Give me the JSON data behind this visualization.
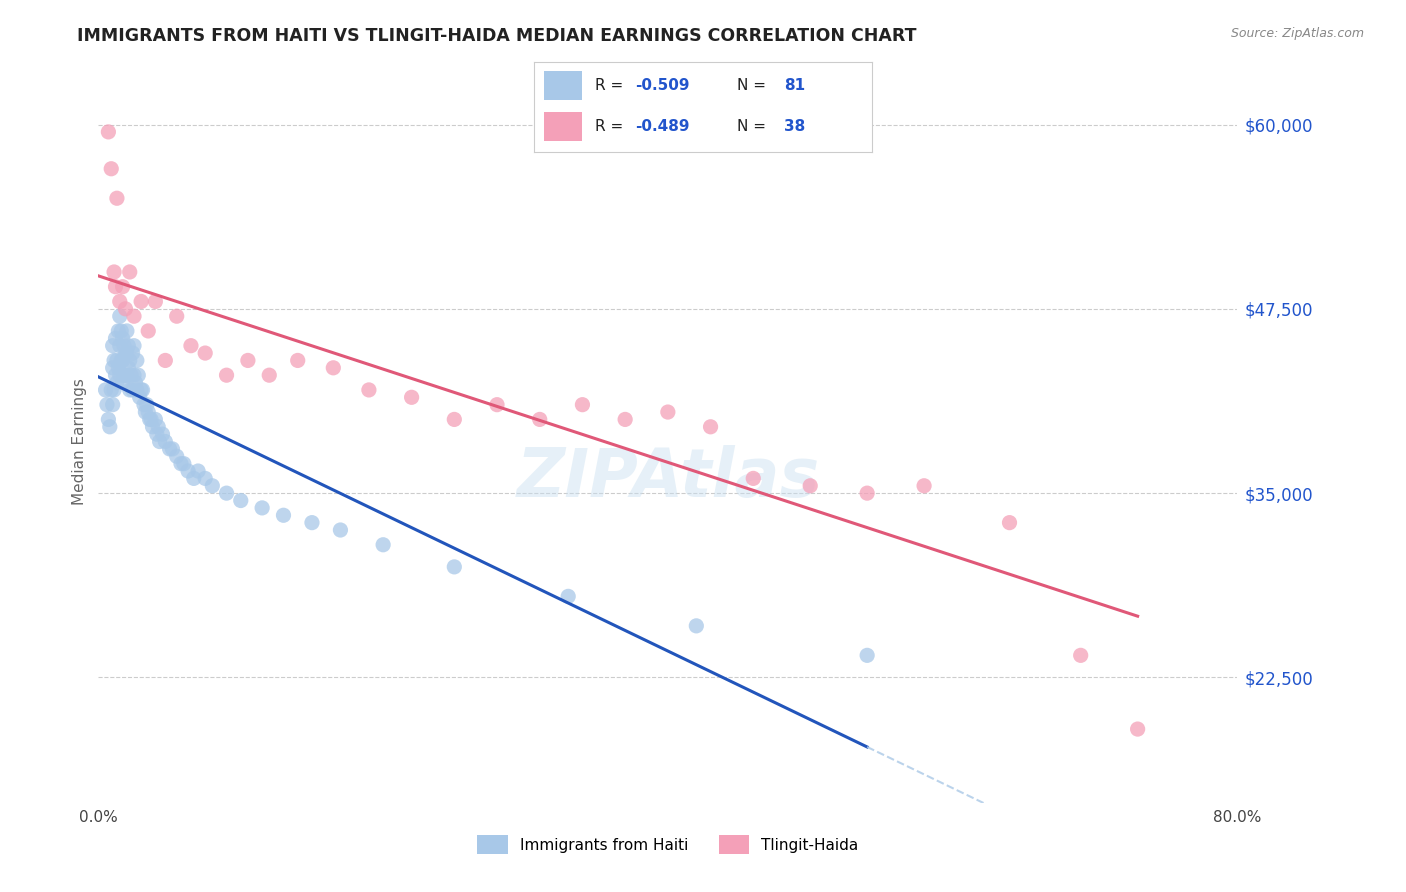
{
  "title": "IMMIGRANTS FROM HAITI VS TLINGIT-HAIDA MEDIAN EARNINGS CORRELATION CHART",
  "source": "Source: ZipAtlas.com",
  "ylabel": "Median Earnings",
  "yticks": [
    22500,
    35000,
    47500,
    60000
  ],
  "ytick_labels": [
    "$22,500",
    "$35,000",
    "$47,500",
    "$60,000"
  ],
  "xmin": 0.0,
  "xmax": 0.8,
  "ymin": 14000,
  "ymax": 63000,
  "color_haiti": "#a8c8e8",
  "color_tlingit": "#f4a0b8",
  "color_haiti_line": "#2255bb",
  "color_tlingit_line": "#e05878",
  "color_dashed": "#b0cce8",
  "color_rv": "#2255cc",
  "legend_label1": "Immigrants from Haiti",
  "legend_label2": "Tlingit-Haida",
  "haiti_x": [
    0.005,
    0.006,
    0.007,
    0.008,
    0.009,
    0.01,
    0.01,
    0.01,
    0.011,
    0.011,
    0.012,
    0.012,
    0.013,
    0.013,
    0.014,
    0.014,
    0.015,
    0.015,
    0.015,
    0.016,
    0.016,
    0.017,
    0.017,
    0.017,
    0.018,
    0.018,
    0.019,
    0.019,
    0.02,
    0.02,
    0.02,
    0.021,
    0.021,
    0.022,
    0.022,
    0.023,
    0.024,
    0.024,
    0.025,
    0.025,
    0.026,
    0.027,
    0.027,
    0.028,
    0.029,
    0.03,
    0.031,
    0.032,
    0.033,
    0.034,
    0.035,
    0.036,
    0.037,
    0.038,
    0.04,
    0.041,
    0.042,
    0.043,
    0.045,
    0.047,
    0.05,
    0.052,
    0.055,
    0.058,
    0.06,
    0.063,
    0.067,
    0.07,
    0.075,
    0.08,
    0.09,
    0.1,
    0.115,
    0.13,
    0.15,
    0.17,
    0.2,
    0.25,
    0.33,
    0.42,
    0.54
  ],
  "haiti_y": [
    42000,
    41000,
    40000,
    39500,
    42000,
    45000,
    43500,
    41000,
    44000,
    42000,
    45500,
    43000,
    44000,
    42500,
    46000,
    43500,
    47000,
    45000,
    43000,
    46000,
    44000,
    45500,
    44000,
    42500,
    45000,
    43000,
    44500,
    43000,
    46000,
    44500,
    43000,
    45000,
    43500,
    44000,
    42000,
    43000,
    44500,
    42000,
    45000,
    43000,
    42500,
    44000,
    42000,
    43000,
    41500,
    42000,
    42000,
    41000,
    40500,
    41000,
    40500,
    40000,
    40000,
    39500,
    40000,
    39000,
    39500,
    38500,
    39000,
    38500,
    38000,
    38000,
    37500,
    37000,
    37000,
    36500,
    36000,
    36500,
    36000,
    35500,
    35000,
    34500,
    34000,
    33500,
    33000,
    32500,
    31500,
    30000,
    28000,
    26000,
    24000
  ],
  "tlingit_x": [
    0.007,
    0.009,
    0.011,
    0.012,
    0.013,
    0.015,
    0.017,
    0.019,
    0.022,
    0.025,
    0.03,
    0.035,
    0.04,
    0.047,
    0.055,
    0.065,
    0.075,
    0.09,
    0.105,
    0.12,
    0.14,
    0.165,
    0.19,
    0.22,
    0.25,
    0.28,
    0.31,
    0.34,
    0.37,
    0.4,
    0.43,
    0.46,
    0.5,
    0.54,
    0.58,
    0.64,
    0.69,
    0.73
  ],
  "tlingit_y": [
    59500,
    57000,
    50000,
    49000,
    55000,
    48000,
    49000,
    47500,
    50000,
    47000,
    48000,
    46000,
    48000,
    44000,
    47000,
    45000,
    44500,
    43000,
    44000,
    43000,
    44000,
    43500,
    42000,
    41500,
    40000,
    41000,
    40000,
    41000,
    40000,
    40500,
    39500,
    36000,
    35500,
    35000,
    35500,
    33000,
    24000,
    19000
  ],
  "watermark": "ZIPAtlas"
}
